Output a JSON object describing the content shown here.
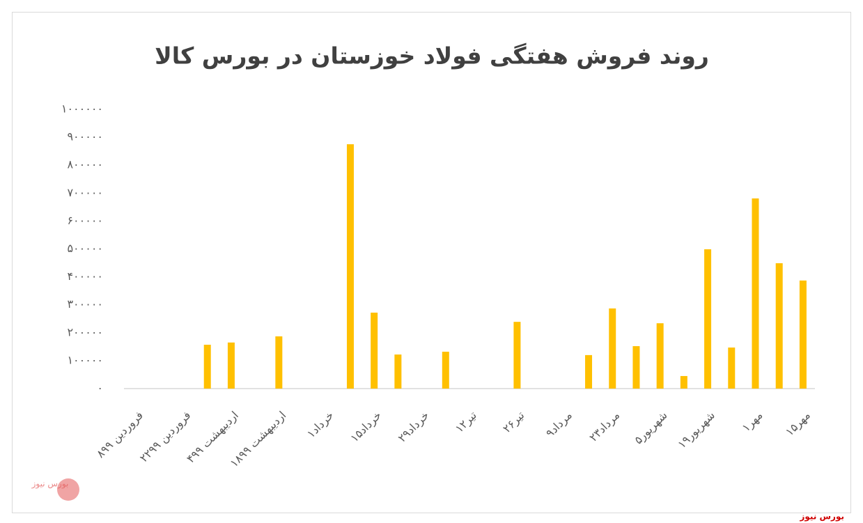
{
  "chart_data": {
    "type": "bar",
    "title": "روند فروش هفتگی فولاد خوزستان در بورس کالا",
    "categories": [
      "۸فروردین ۹۹",
      null,
      "۲۲فروردین ۹۹",
      null,
      "۴اردیبهشت ۹۹",
      null,
      "۱۸اردیبهشت ۹۹",
      null,
      "۱خرداد",
      null,
      "۱۵خرداد",
      null,
      "۲۹خرداد",
      null,
      "۱۲تیر",
      null,
      "۲۶تیر",
      null,
      "۹مرداد",
      null,
      "۲۳مرداد",
      null,
      "۵شهریور",
      null,
      "۱۹شهریور",
      null,
      "۱مهر",
      null,
      "۱۵مهر"
    ],
    "values": [
      0,
      0,
      0,
      157000,
      165000,
      0,
      187000,
      0,
      0,
      875000,
      272000,
      122000,
      0,
      132000,
      0,
      0,
      239000,
      0,
      0,
      120000,
      287000,
      152000,
      234000,
      45000,
      499000,
      147000,
      681000,
      449000,
      387000
    ],
    "color": "#ffc000",
    "ylim": [
      0,
      1000000
    ],
    "yticks": [
      {
        "value": 0,
        "label": "۰"
      },
      {
        "value": 100000,
        "label": "۱۰۰۰۰۰"
      },
      {
        "value": 200000,
        "label": "۲۰۰۰۰۰"
      },
      {
        "value": 300000,
        "label": "۳۰۰۰۰۰"
      },
      {
        "value": 400000,
        "label": "۴۰۰۰۰۰"
      },
      {
        "value": 500000,
        "label": "۵۰۰۰۰۰"
      },
      {
        "value": 600000,
        "label": "۶۰۰۰۰۰"
      },
      {
        "value": 700000,
        "label": "۷۰۰۰۰۰"
      },
      {
        "value": 800000,
        "label": "۸۰۰۰۰۰"
      },
      {
        "value": 900000,
        "label": "۹۰۰۰۰۰"
      },
      {
        "value": 1000000,
        "label": "۱۰۰۰۰۰۰"
      }
    ],
    "grid": false
  },
  "footer": {
    "logo_text": "بورس نیوز",
    "credit": "بورس نیوز"
  }
}
